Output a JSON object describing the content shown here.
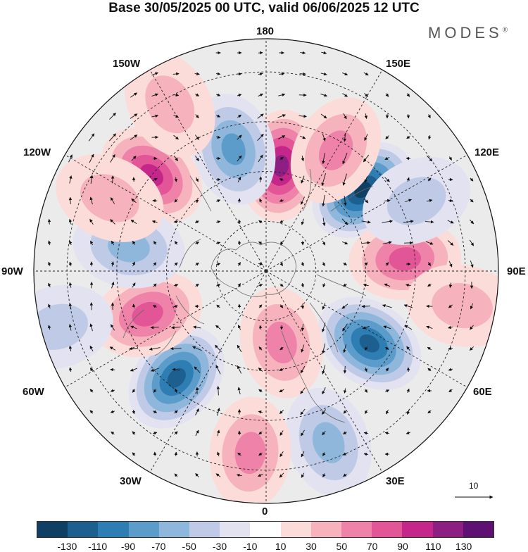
{
  "title": "Base 30/05/2025 00 UTC, valid 06/06/2025 12 UTC",
  "logo": "MODES",
  "logo_mark": "®",
  "labels": {
    "n180": "180",
    "w150": "150W",
    "e150": "150E",
    "w120": "120W",
    "e120": "120E",
    "w90": "90W",
    "e90": "90E",
    "w60": "60W",
    "e60": "60E",
    "w30": "30W",
    "e30": "30E",
    "zero": "0"
  },
  "reference_vector": "10",
  "colorbar": {
    "colors": [
      "#0f3f63",
      "#1d5f8e",
      "#2e7db3",
      "#5c9cca",
      "#8fb7dc",
      "#bfcbe6",
      "#e2e2f0",
      "#ffffff",
      "#fbdcd9",
      "#f6b3bd",
      "#ee82a8",
      "#e25597",
      "#c5268a",
      "#8e1f82",
      "#5e1173"
    ],
    "ticks": [
      "-130",
      "-110",
      "-90",
      "-70",
      "-50",
      "-30",
      "-10",
      "10",
      "30",
      "50",
      "70",
      "90",
      "110",
      "130"
    ]
  },
  "anomalies": [
    {
      "lon": 172,
      "lat": 58,
      "value": 100
    },
    {
      "lon": -165,
      "lat": 52,
      "value": -60
    },
    {
      "lon": -130,
      "lat": 45,
      "value": 80
    },
    {
      "lon": 130,
      "lat": 52,
      "value": -115
    },
    {
      "lon": 95,
      "lat": 48,
      "value": 70
    },
    {
      "lon": 55,
      "lat": 52,
      "value": -95
    },
    {
      "lon": 12,
      "lat": 68,
      "value": 50
    },
    {
      "lon": 20,
      "lat": 35,
      "value": -45
    },
    {
      "lon": -40,
      "lat": 48,
      "value": -110
    },
    {
      "lon": -70,
      "lat": 52,
      "value": 70
    },
    {
      "lon": -100,
      "lat": 48,
      "value": -40
    },
    {
      "lon": -75,
      "lat": 25,
      "value": -30
    },
    {
      "lon": -5,
      "lat": 35,
      "value": 40
    },
    {
      "lon": 150,
      "lat": 48,
      "value": 40
    },
    {
      "lon": 115,
      "lat": 40,
      "value": -30
    },
    {
      "lon": -150,
      "lat": 32,
      "value": 30
    },
    {
      "lon": -115,
      "lat": 38,
      "value": 30
    },
    {
      "lon": 80,
      "lat": 30,
      "value": 30
    }
  ]
}
